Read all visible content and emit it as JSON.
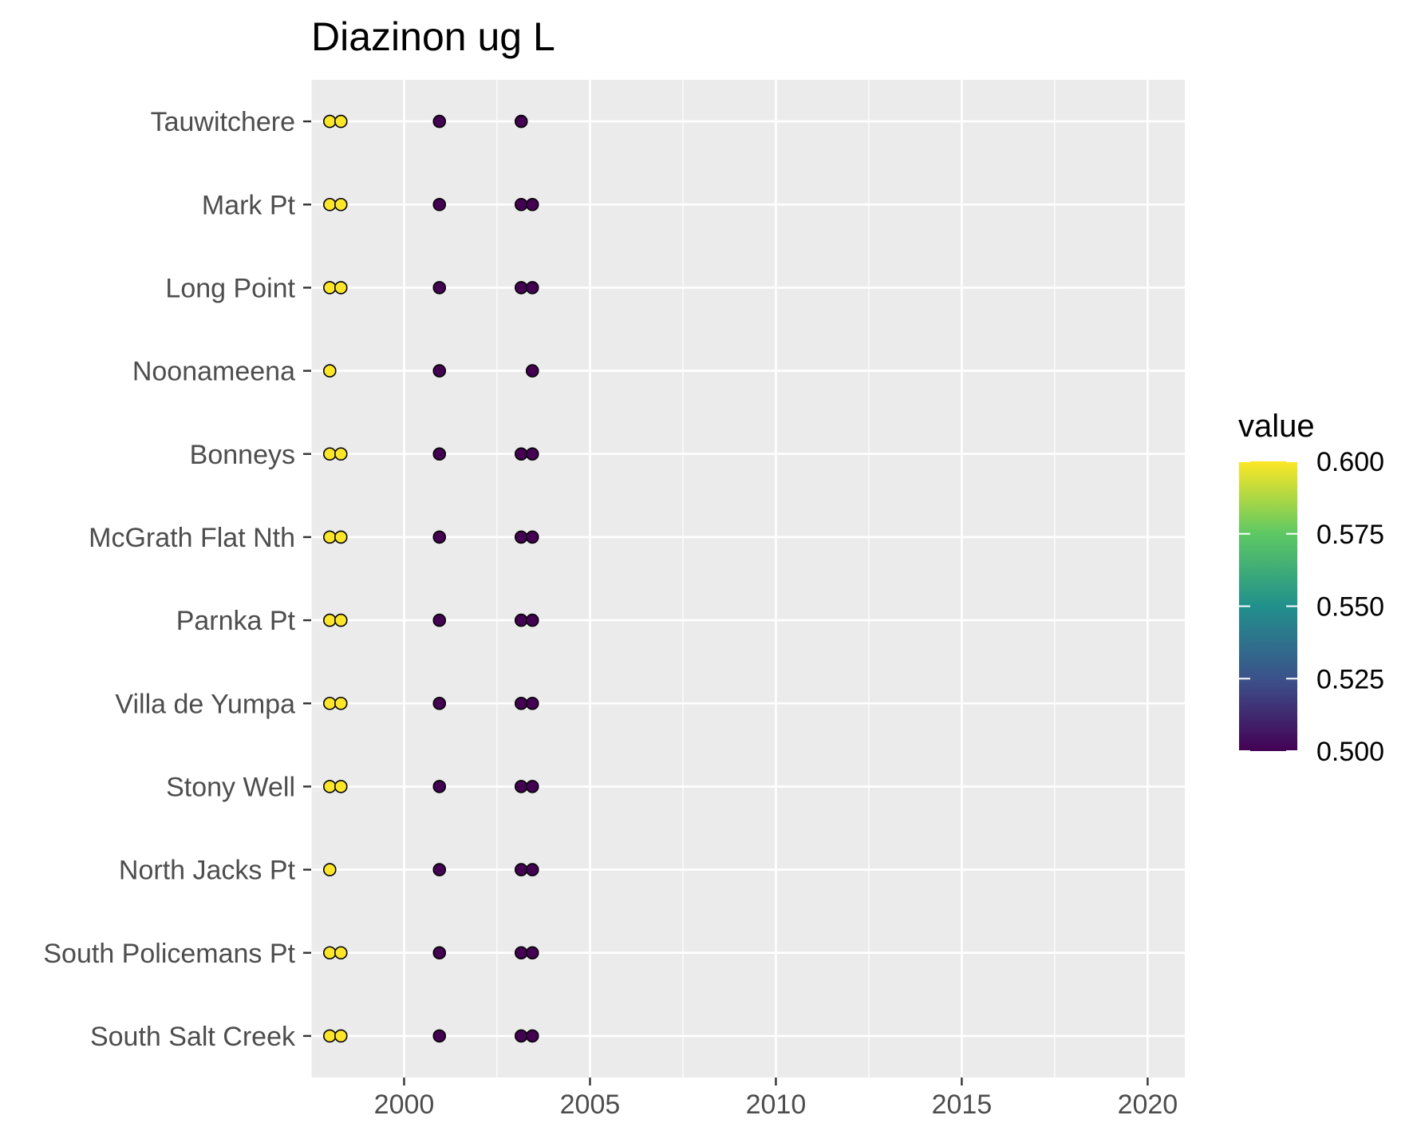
{
  "chart_data": {
    "type": "scatter",
    "title": "Diazinon ug L",
    "xlabel": "",
    "ylabel": "",
    "xlim": [
      1997.5,
      2021
    ],
    "x_ticks": [
      2000,
      2005,
      2010,
      2015,
      2020
    ],
    "x_tick_labels": [
      "2000",
      "2005",
      "2010",
      "2015",
      "2020"
    ],
    "sites": [
      "Tauwitchere",
      "Mark Pt",
      "Long Point",
      "Noonameena",
      "Bonneys",
      "McGrath Flat Nth",
      "Parnka Pt",
      "Villa de Yumpa",
      "Stony Well",
      "North Jacks Pt",
      "South Policemans Pt",
      "South Salt Creek"
    ],
    "grid": true,
    "color_scale": {
      "name": "viridis",
      "min": 0.5,
      "max": 0.6,
      "stops": [
        "#440154",
        "#3b528b",
        "#21908c",
        "#5dc863",
        "#fde725"
      ]
    },
    "legend": {
      "title": "value",
      "placement": "right",
      "breaks": [
        0.6,
        0.575,
        0.55,
        0.525,
        0.5
      ],
      "labels": [
        "0.600",
        "0.575",
        "0.550",
        "0.525",
        "0.500"
      ]
    },
    "points": [
      {
        "site": "Tauwitchere",
        "x": 1998.0,
        "value": 0.6
      },
      {
        "site": "Tauwitchere",
        "x": 1998.3,
        "value": 0.6
      },
      {
        "site": "Tauwitchere",
        "x": 2000.95,
        "value": 0.5
      },
      {
        "site": "Tauwitchere",
        "x": 2003.15,
        "value": 0.5
      },
      {
        "site": "Mark Pt",
        "x": 1998.0,
        "value": 0.6
      },
      {
        "site": "Mark Pt",
        "x": 1998.3,
        "value": 0.6
      },
      {
        "site": "Mark Pt",
        "x": 2000.95,
        "value": 0.5
      },
      {
        "site": "Mark Pt",
        "x": 2003.15,
        "value": 0.5
      },
      {
        "site": "Mark Pt",
        "x": 2003.45,
        "value": 0.5
      },
      {
        "site": "Long Point",
        "x": 1998.0,
        "value": 0.6
      },
      {
        "site": "Long Point",
        "x": 1998.3,
        "value": 0.6
      },
      {
        "site": "Long Point",
        "x": 2000.95,
        "value": 0.5
      },
      {
        "site": "Long Point",
        "x": 2003.15,
        "value": 0.5
      },
      {
        "site": "Long Point",
        "x": 2003.45,
        "value": 0.5
      },
      {
        "site": "Noonameena",
        "x": 1998.0,
        "value": 0.6
      },
      {
        "site": "Noonameena",
        "x": 2000.95,
        "value": 0.5
      },
      {
        "site": "Noonameena",
        "x": 2003.45,
        "value": 0.5
      },
      {
        "site": "Bonneys",
        "x": 1998.0,
        "value": 0.6
      },
      {
        "site": "Bonneys",
        "x": 1998.3,
        "value": 0.6
      },
      {
        "site": "Bonneys",
        "x": 2000.95,
        "value": 0.5
      },
      {
        "site": "Bonneys",
        "x": 2003.15,
        "value": 0.5
      },
      {
        "site": "Bonneys",
        "x": 2003.45,
        "value": 0.5
      },
      {
        "site": "McGrath Flat Nth",
        "x": 1998.0,
        "value": 0.6
      },
      {
        "site": "McGrath Flat Nth",
        "x": 1998.3,
        "value": 0.6
      },
      {
        "site": "McGrath Flat Nth",
        "x": 2000.95,
        "value": 0.5
      },
      {
        "site": "McGrath Flat Nth",
        "x": 2003.15,
        "value": 0.5
      },
      {
        "site": "McGrath Flat Nth",
        "x": 2003.45,
        "value": 0.5
      },
      {
        "site": "Parnka Pt",
        "x": 1998.0,
        "value": 0.6
      },
      {
        "site": "Parnka Pt",
        "x": 1998.3,
        "value": 0.6
      },
      {
        "site": "Parnka Pt",
        "x": 2000.95,
        "value": 0.5
      },
      {
        "site": "Parnka Pt",
        "x": 2003.15,
        "value": 0.5
      },
      {
        "site": "Parnka Pt",
        "x": 2003.45,
        "value": 0.5
      },
      {
        "site": "Villa de Yumpa",
        "x": 1998.0,
        "value": 0.6
      },
      {
        "site": "Villa de Yumpa",
        "x": 1998.3,
        "value": 0.6
      },
      {
        "site": "Villa de Yumpa",
        "x": 2000.95,
        "value": 0.5
      },
      {
        "site": "Villa de Yumpa",
        "x": 2003.15,
        "value": 0.5
      },
      {
        "site": "Villa de Yumpa",
        "x": 2003.45,
        "value": 0.5
      },
      {
        "site": "Stony Well",
        "x": 1998.0,
        "value": 0.6
      },
      {
        "site": "Stony Well",
        "x": 1998.3,
        "value": 0.6
      },
      {
        "site": "Stony Well",
        "x": 2000.95,
        "value": 0.5
      },
      {
        "site": "Stony Well",
        "x": 2003.15,
        "value": 0.5
      },
      {
        "site": "Stony Well",
        "x": 2003.45,
        "value": 0.5
      },
      {
        "site": "North Jacks Pt",
        "x": 1998.0,
        "value": 0.6
      },
      {
        "site": "North Jacks Pt",
        "x": 2000.95,
        "value": 0.5
      },
      {
        "site": "North Jacks Pt",
        "x": 2003.15,
        "value": 0.5
      },
      {
        "site": "North Jacks Pt",
        "x": 2003.45,
        "value": 0.5
      },
      {
        "site": "South Policemans Pt",
        "x": 1998.0,
        "value": 0.6
      },
      {
        "site": "South Policemans Pt",
        "x": 1998.3,
        "value": 0.6
      },
      {
        "site": "South Policemans Pt",
        "x": 2000.95,
        "value": 0.5
      },
      {
        "site": "South Policemans Pt",
        "x": 2003.15,
        "value": 0.5
      },
      {
        "site": "South Policemans Pt",
        "x": 2003.45,
        "value": 0.5
      },
      {
        "site": "South Salt Creek",
        "x": 1998.0,
        "value": 0.6
      },
      {
        "site": "South Salt Creek",
        "x": 1998.3,
        "value": 0.6
      },
      {
        "site": "South Salt Creek",
        "x": 2000.95,
        "value": 0.5
      },
      {
        "site": "South Salt Creek",
        "x": 2003.15,
        "value": 0.5
      },
      {
        "site": "South Salt Creek",
        "x": 2003.45,
        "value": 0.5
      }
    ]
  }
}
